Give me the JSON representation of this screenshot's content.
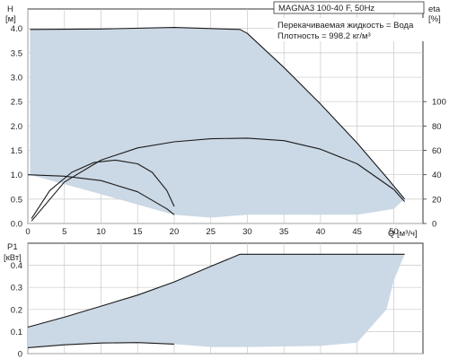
{
  "chart_data": {
    "type": "line",
    "title": "MAGNA3 100-40 F, 50Hz",
    "annotations": [
      "Перекачиваемая жидкость = Вода",
      "Плотность = 998.2 кг/м³"
    ],
    "grid": true,
    "x_axis": {
      "label": "Q [м³/ч]",
      "range": [
        0,
        54
      ],
      "ticks": [
        "0",
        "5",
        "10",
        "15",
        "20",
        "25",
        "30",
        "35",
        "40",
        "45",
        "50"
      ]
    },
    "head_panel": {
      "ylabel": "H",
      "yunit": "[м]",
      "ylim": [
        0,
        4.4
      ],
      "yticks": [
        "0.0",
        "0.5",
        "1.0",
        "1.5",
        "2.0",
        "2.5",
        "3.0",
        "3.5",
        "4.0"
      ],
      "right_axis": {
        "label": "eta",
        "unit": "[%]",
        "ylim": [
          0,
          176
        ],
        "ticks": [
          "0",
          "20",
          "40",
          "60",
          "80",
          "100"
        ]
      },
      "series": [
        {
          "role": "operating-range-area",
          "upper": [
            [
              0.3,
              3.98
            ],
            [
              10,
              3.99
            ],
            [
              20,
              4.02
            ],
            [
              29,
              3.98
            ],
            [
              30,
              3.9
            ],
            [
              35,
              3.2
            ],
            [
              40,
              2.45
            ],
            [
              45,
              1.65
            ],
            [
              49,
              0.95
            ],
            [
              51.5,
              0.5
            ]
          ],
          "lower": [
            [
              0.3,
              1.0
            ],
            [
              10,
              0.6
            ],
            [
              19,
              0.22
            ],
            [
              20,
              0.18
            ],
            [
              25,
              0.12
            ],
            [
              30,
              0.18
            ],
            [
              40,
              0.18
            ],
            [
              45,
              0.18
            ],
            [
              50,
              0.3
            ],
            [
              51.5,
              0.5
            ]
          ]
        },
        {
          "role": "head-max",
          "points": [
            [
              0.3,
              3.98
            ],
            [
              10,
              3.99
            ],
            [
              20,
              4.02
            ],
            [
              29,
              3.98
            ],
            [
              30,
              3.9
            ],
            [
              35,
              3.2
            ],
            [
              40,
              2.45
            ],
            [
              45,
              1.65
            ],
            [
              49,
              0.95
            ],
            [
              51.5,
              0.5
            ]
          ]
        },
        {
          "role": "head-min",
          "points": [
            [
              0,
              1.0
            ],
            [
              5,
              0.97
            ],
            [
              10,
              0.88
            ],
            [
              15,
              0.65
            ],
            [
              19,
              0.3
            ],
            [
              20,
              0.18
            ]
          ]
        },
        {
          "role": "eta-max",
          "axis": "right",
          "points": [
            [
              0.5,
              2
            ],
            [
              5,
              34
            ],
            [
              10,
              52
            ],
            [
              15,
              62
            ],
            [
              20,
              67
            ],
            [
              25,
              69.5
            ],
            [
              30,
              70
            ],
            [
              35,
              68
            ],
            [
              40,
              61
            ],
            [
              45,
              49
            ],
            [
              50,
              28
            ],
            [
              51.5,
              18
            ]
          ]
        },
        {
          "role": "eta-min",
          "axis": "right",
          "points": [
            [
              0.5,
              4
            ],
            [
              3,
              27
            ],
            [
              6,
              42
            ],
            [
              9,
              50
            ],
            [
              12,
              52
            ],
            [
              15,
              49
            ],
            [
              17,
              42
            ],
            [
              19,
              27
            ],
            [
              20,
              14
            ]
          ]
        }
      ]
    },
    "power_panel": {
      "ylabel": "P1",
      "yunit": "[кВт]",
      "ylim": [
        0,
        0.5
      ],
      "yticks": [
        "0",
        "0.1",
        "0.2",
        "0.3",
        "0.4"
      ],
      "series": [
        {
          "role": "power-range-area",
          "upper": [
            [
              0,
              0.12
            ],
            [
              5,
              0.165
            ],
            [
              10,
              0.215
            ],
            [
              15,
              0.265
            ],
            [
              20,
              0.325
            ],
            [
              25,
              0.395
            ],
            [
              29,
              0.45
            ],
            [
              35,
              0.45
            ],
            [
              40,
              0.45
            ],
            [
              45,
              0.45
            ],
            [
              51.5,
              0.45
            ]
          ],
          "lower": [
            [
              0,
              0.027
            ],
            [
              5,
              0.04
            ],
            [
              10,
              0.048
            ],
            [
              15,
              0.05
            ],
            [
              20,
              0.043
            ],
            [
              25,
              0.03
            ],
            [
              30,
              0.03
            ],
            [
              40,
              0.035
            ],
            [
              45,
              0.05
            ],
            [
              49,
              0.2
            ],
            [
              50,
              0.33
            ],
            [
              51.5,
              0.45
            ]
          ]
        },
        {
          "role": "power-max",
          "points": [
            [
              0,
              0.12
            ],
            [
              5,
              0.165
            ],
            [
              10,
              0.215
            ],
            [
              15,
              0.265
            ],
            [
              20,
              0.325
            ],
            [
              25,
              0.395
            ],
            [
              29,
              0.45
            ],
            [
              35,
              0.45
            ],
            [
              40,
              0.45
            ],
            [
              45,
              0.45
            ],
            [
              51.5,
              0.45
            ]
          ]
        },
        {
          "role": "power-min",
          "points": [
            [
              0,
              0.027
            ],
            [
              5,
              0.04
            ],
            [
              10,
              0.048
            ],
            [
              15,
              0.05
            ],
            [
              20,
              0.043
            ]
          ]
        }
      ]
    }
  }
}
